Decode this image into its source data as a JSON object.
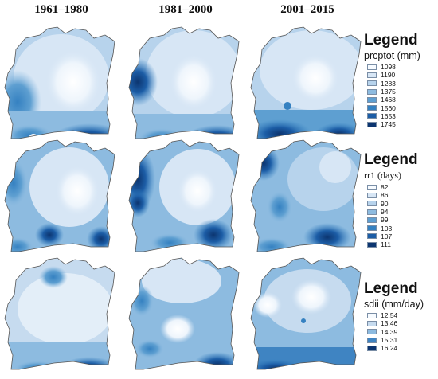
{
  "columns": [
    "1961–1980",
    "1981–2000",
    "2001–2015"
  ],
  "legends": [
    {
      "title": "Legend",
      "variable": "prcptot  (mm)",
      "items": [
        "1098",
        "1190",
        "1283",
        "1375",
        "1468",
        "1560",
        "1653",
        "1745"
      ],
      "colors": [
        "#f7fbff",
        "#d7e6f5",
        "#b7d3ec",
        "#8dbbe0",
        "#5e9fd1",
        "#3581c1",
        "#1c5da6",
        "#0c3570"
      ]
    },
    {
      "title": "Legend",
      "variable": "rr1 (days)",
      "items": [
        "82",
        "86",
        "90",
        "94",
        "99",
        "103",
        "107",
        "111"
      ],
      "colors": [
        "#f7fbff",
        "#d7e6f5",
        "#b7d3ec",
        "#8dbbe0",
        "#5e9fd1",
        "#3581c1",
        "#1c5da6",
        "#0c3570"
      ]
    },
    {
      "title": "Legend",
      "variable": "sdii (mm/day)",
      "items": [
        "12.54",
        "13.46",
        "14.39",
        "15.31",
        "16.24"
      ],
      "colors": [
        "#f7fbff",
        "#c6dbef",
        "#8dbbe0",
        "#3f84c2",
        "#0c3570"
      ]
    }
  ]
}
